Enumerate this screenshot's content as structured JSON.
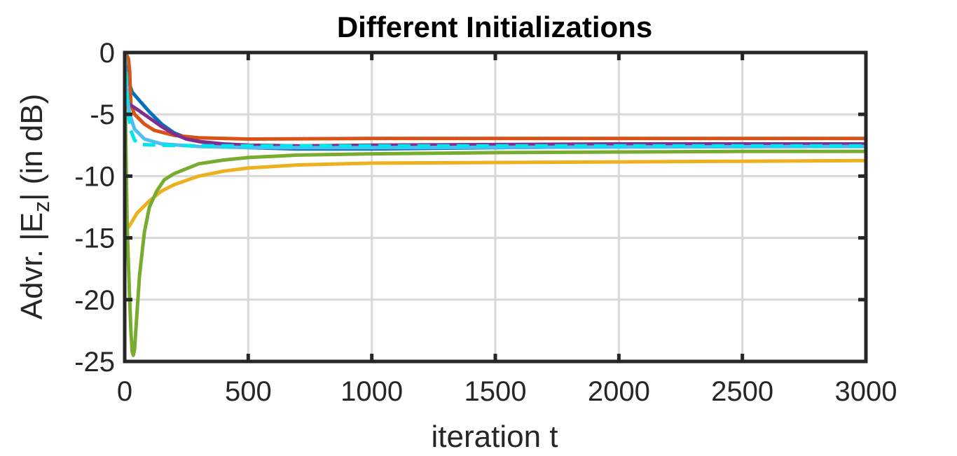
{
  "chart_data": {
    "type": "line",
    "title": "Different Initializations",
    "xlabel": "iteration t",
    "ylabel_main": "Advr. |E",
    "ylabel_sub": "z",
    "ylabel_tail": "| (in dB)",
    "xlim": [
      0,
      3000
    ],
    "ylim": [
      -25,
      0
    ],
    "xticks": [
      0,
      500,
      1000,
      1500,
      2000,
      2500,
      3000
    ],
    "yticks": [
      0,
      -5,
      -10,
      -15,
      -20,
      -25
    ],
    "grid": true,
    "series": [
      {
        "color": "#0072BD",
        "dashed": false,
        "points": [
          [
            0,
            -0.3
          ],
          [
            10,
            -1.5
          ],
          [
            20,
            -2.6
          ],
          [
            30,
            -3.2
          ],
          [
            60,
            -3.9
          ],
          [
            100,
            -4.8
          ],
          [
            150,
            -5.8
          ],
          [
            200,
            -6.5
          ],
          [
            250,
            -6.9
          ],
          [
            300,
            -7.2
          ],
          [
            400,
            -7.5
          ],
          [
            500,
            -7.7
          ],
          [
            700,
            -7.8
          ],
          [
            1000,
            -7.8
          ],
          [
            1500,
            -7.7
          ],
          [
            2000,
            -7.6
          ],
          [
            2500,
            -7.5
          ],
          [
            3000,
            -7.4
          ]
        ]
      },
      {
        "color": "#D95319",
        "dashed": false,
        "points": [
          [
            0,
            0
          ],
          [
            8,
            -0.2
          ],
          [
            15,
            -0.5
          ],
          [
            20,
            -1.5
          ],
          [
            25,
            -4.2
          ],
          [
            40,
            -5.0
          ],
          [
            80,
            -5.8
          ],
          [
            120,
            -6.3
          ],
          [
            200,
            -6.7
          ],
          [
            300,
            -6.9
          ],
          [
            500,
            -7.0
          ],
          [
            1000,
            -6.95
          ],
          [
            2000,
            -6.95
          ],
          [
            3000,
            -6.95
          ]
        ]
      },
      {
        "color": "#EDB120",
        "dashed": false,
        "points": [
          [
            0,
            -14.5
          ],
          [
            20,
            -14.0
          ],
          [
            50,
            -13.0
          ],
          [
            100,
            -12.0
          ],
          [
            150,
            -11.2
          ],
          [
            200,
            -10.7
          ],
          [
            300,
            -10.0
          ],
          [
            400,
            -9.6
          ],
          [
            500,
            -9.35
          ],
          [
            700,
            -9.1
          ],
          [
            1000,
            -8.95
          ],
          [
            1500,
            -8.9
          ],
          [
            2000,
            -8.85
          ],
          [
            2500,
            -8.8
          ],
          [
            3000,
            -8.75
          ]
        ]
      },
      {
        "color": "#7E2F8E",
        "dashed": false,
        "points": [
          [
            0,
            -4.0
          ],
          [
            20,
            -4.2
          ],
          [
            50,
            -4.6
          ],
          [
            100,
            -5.3
          ],
          [
            150,
            -6.0
          ],
          [
            200,
            -6.6
          ],
          [
            250,
            -7.0
          ],
          [
            300,
            -7.2
          ],
          [
            400,
            -7.4
          ],
          [
            500,
            -7.5
          ],
          [
            700,
            -7.55
          ],
          [
            1000,
            -7.5
          ],
          [
            1500,
            -7.45
          ],
          [
            2000,
            -7.4
          ],
          [
            3000,
            -7.4
          ]
        ]
      },
      {
        "color": "#77AC30",
        "dashed": false,
        "points": [
          [
            0,
            -1.0
          ],
          [
            5,
            -8.0
          ],
          [
            10,
            -14.0
          ],
          [
            15,
            -17.0
          ],
          [
            20,
            -20.0
          ],
          [
            25,
            -22.5
          ],
          [
            30,
            -24.2
          ],
          [
            35,
            -24.5
          ],
          [
            40,
            -24.0
          ],
          [
            50,
            -21.0
          ],
          [
            60,
            -18.0
          ],
          [
            80,
            -14.5
          ],
          [
            100,
            -12.5
          ],
          [
            130,
            -11.2
          ],
          [
            160,
            -10.3
          ],
          [
            200,
            -9.8
          ],
          [
            300,
            -9.0
          ],
          [
            400,
            -8.7
          ],
          [
            500,
            -8.5
          ],
          [
            700,
            -8.3
          ],
          [
            1000,
            -8.2
          ],
          [
            1500,
            -8.1
          ],
          [
            2000,
            -8.05
          ],
          [
            2500,
            -8.0
          ],
          [
            3000,
            -8.0
          ]
        ]
      },
      {
        "color": "#4DBEEE",
        "dashed": false,
        "points": [
          [
            0,
            -0.5
          ],
          [
            5,
            -2.0
          ],
          [
            10,
            -3.5
          ],
          [
            20,
            -5.0
          ],
          [
            40,
            -6.2
          ],
          [
            80,
            -7.0
          ],
          [
            150,
            -7.4
          ],
          [
            300,
            -7.6
          ],
          [
            500,
            -7.7
          ],
          [
            1000,
            -7.7
          ],
          [
            2000,
            -7.65
          ],
          [
            3000,
            -7.6
          ]
        ]
      },
      {
        "color": "#00E5EE",
        "dashed": true,
        "points": [
          [
            0,
            0
          ],
          [
            5,
            -1.5
          ],
          [
            10,
            -3.5
          ],
          [
            15,
            -5.0
          ],
          [
            25,
            -6.3
          ],
          [
            40,
            -7.1
          ],
          [
            70,
            -7.45
          ],
          [
            150,
            -7.5
          ],
          [
            300,
            -7.55
          ],
          [
            500,
            -7.55
          ],
          [
            1000,
            -7.55
          ],
          [
            2000,
            -7.55
          ],
          [
            3000,
            -7.55
          ]
        ]
      }
    ]
  }
}
